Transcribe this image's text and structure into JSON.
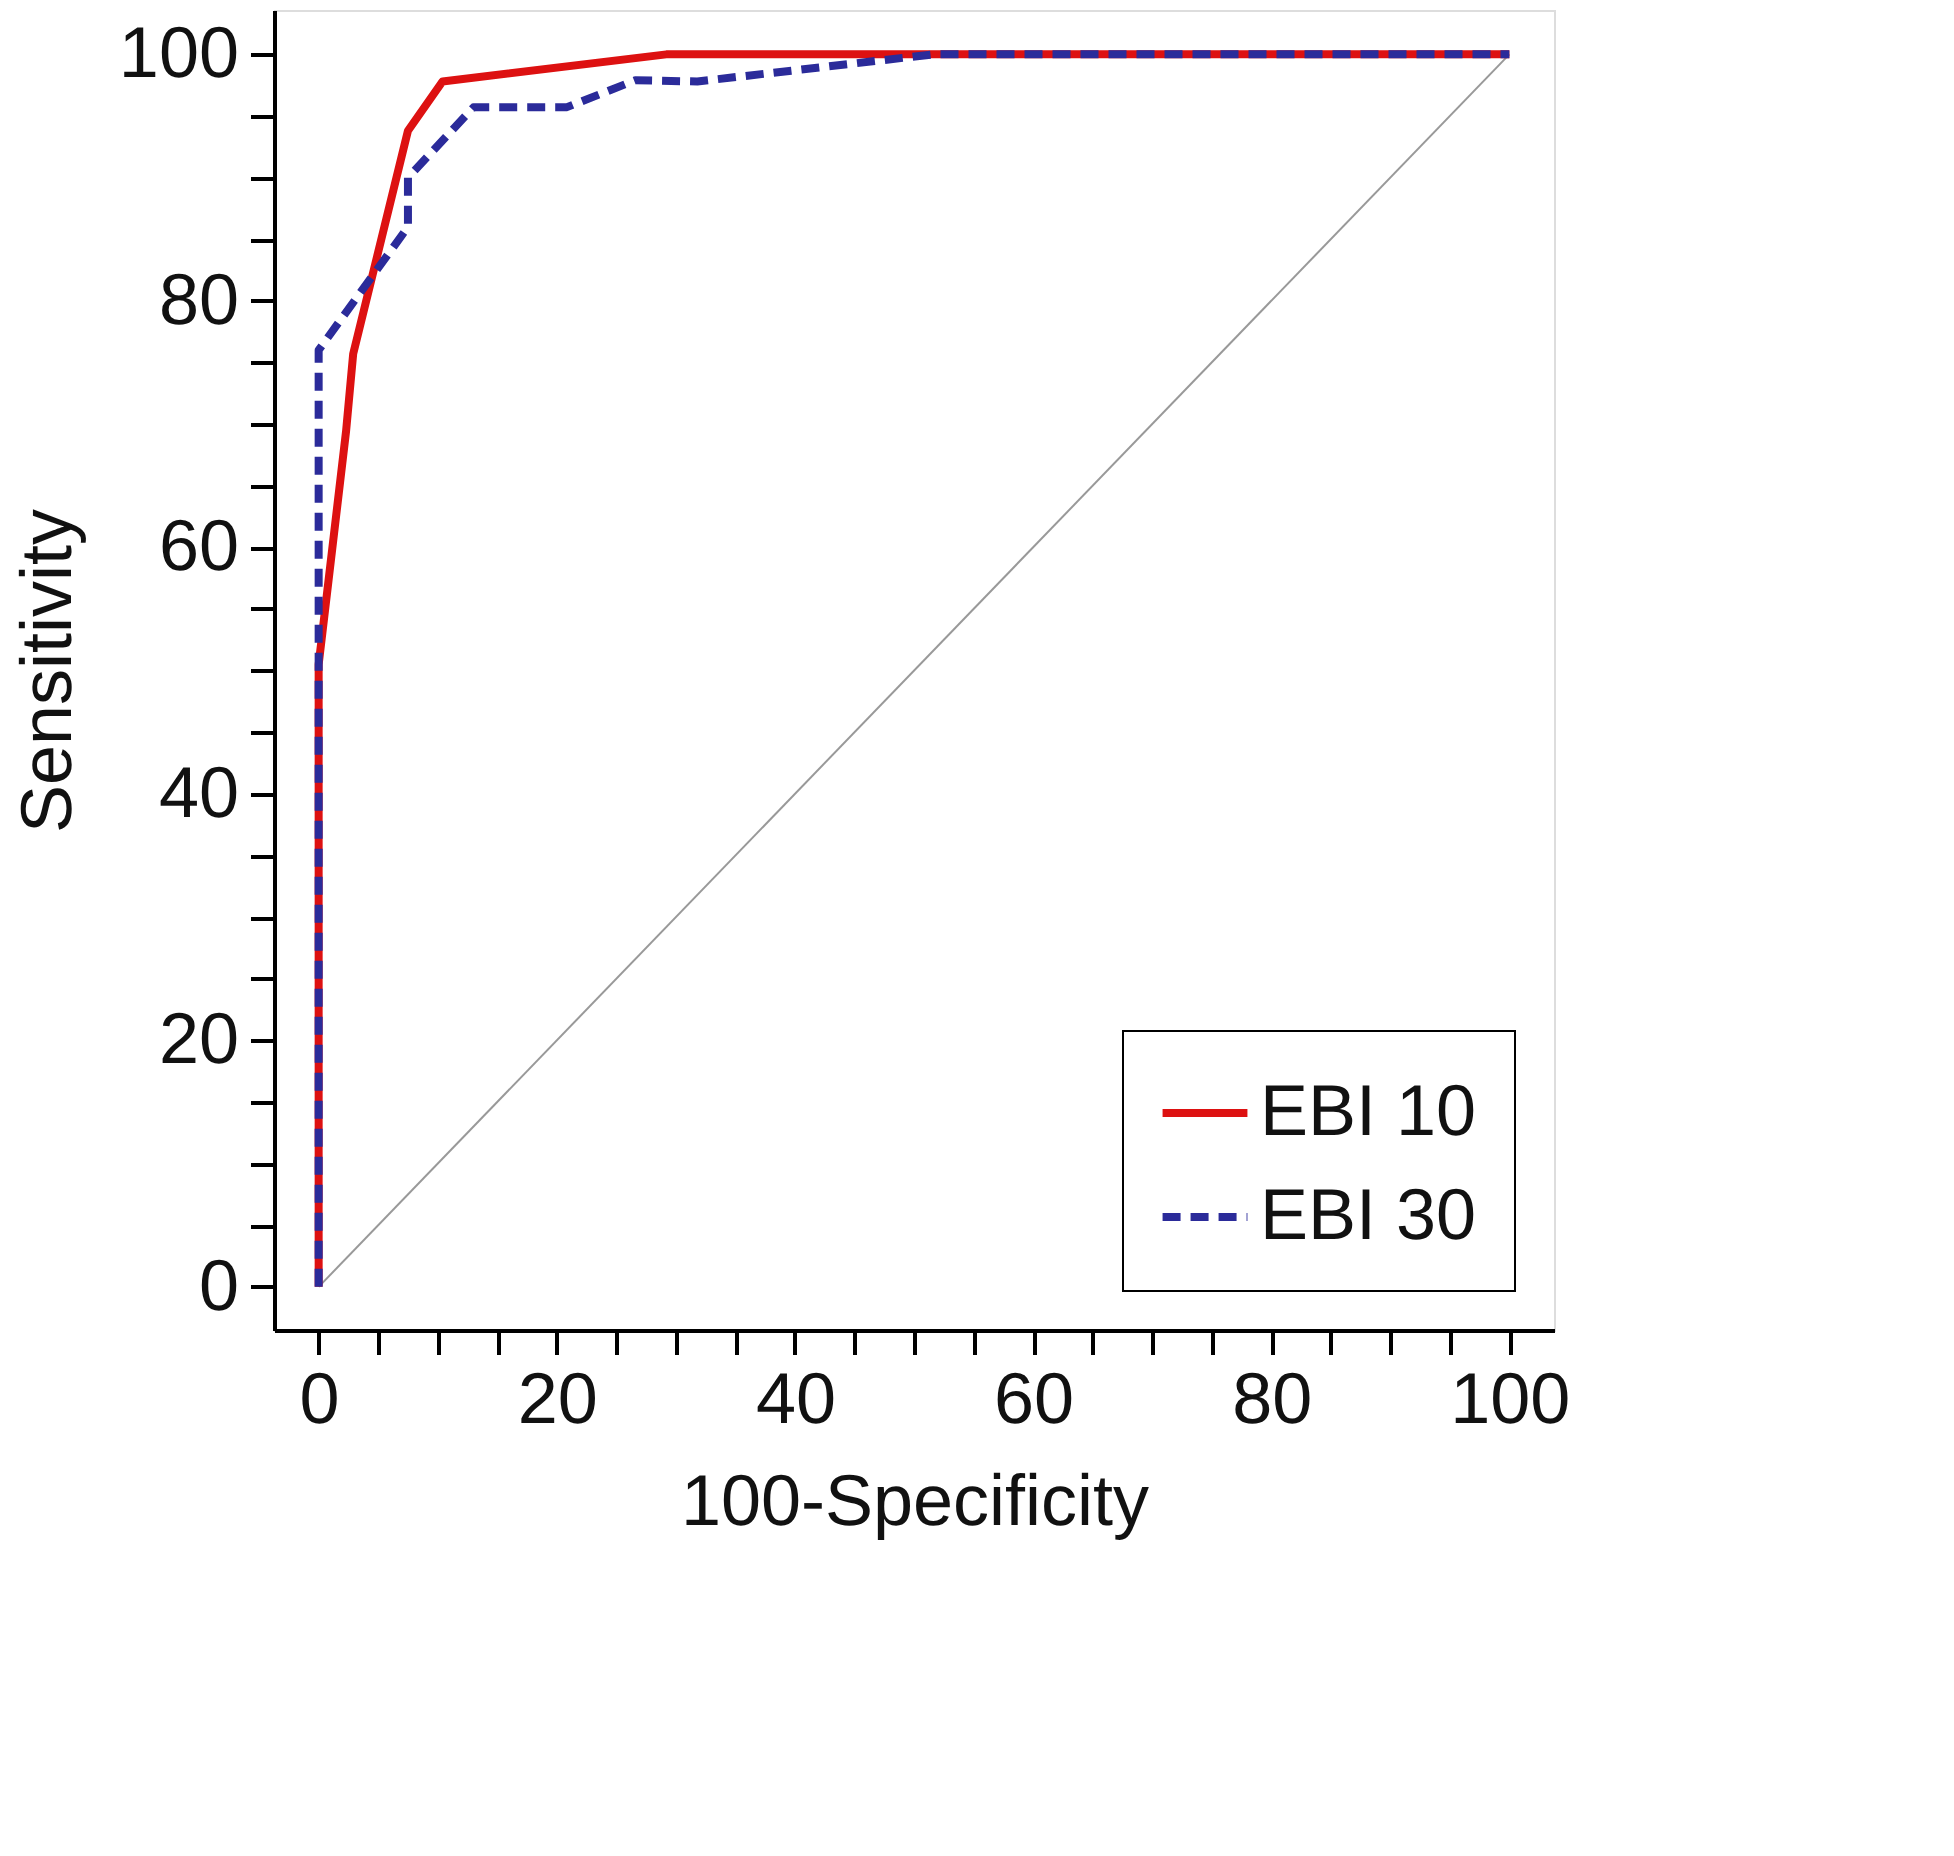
{
  "chart_data": {
    "type": "line",
    "xlabel": "100-Specificity",
    "ylabel": "Sensitivity",
    "xlim": [
      -3.75,
      103.75
    ],
    "ylim": [
      -3.5,
      103.6
    ],
    "xticks": [
      0,
      {
        "value": 5,
        "label": null
      },
      {
        "value": 10,
        "label": null
      },
      {
        "value": 15,
        "label": null
      },
      20,
      {
        "value": 25,
        "label": null
      },
      {
        "value": 30,
        "label": null
      },
      {
        "value": 35,
        "label": null
      },
      40,
      {
        "value": 45,
        "label": null
      },
      {
        "value": 50,
        "label": null
      },
      {
        "value": 55,
        "label": null
      },
      60,
      {
        "value": 65,
        "label": null
      },
      {
        "value": 70,
        "label": null
      },
      {
        "value": 75,
        "label": null
      },
      80,
      {
        "value": 85,
        "label": null
      },
      {
        "value": 90,
        "label": null
      },
      {
        "value": 95,
        "label": null
      },
      100
    ],
    "yticks": [
      0,
      {
        "value": 5,
        "label": null
      },
      {
        "value": 10,
        "label": null
      },
      {
        "value": 15,
        "label": null
      },
      20,
      {
        "value": 25,
        "label": null
      },
      {
        "value": 30,
        "label": null
      },
      {
        "value": 35,
        "label": null
      },
      40,
      {
        "value": 45,
        "label": null
      },
      {
        "value": 50,
        "label": null
      },
      {
        "value": 55,
        "label": null
      },
      60,
      {
        "value": 65,
        "label": null
      },
      {
        "value": 70,
        "label": null
      },
      {
        "value": 75,
        "label": null
      },
      80,
      {
        "value": 85,
        "label": null
      },
      {
        "value": 90,
        "label": null
      },
      {
        "value": 95,
        "label": null
      },
      100
    ],
    "grid": false,
    "legend": "bottom right",
    "marker": "none",
    "series": [
      {
        "name": "EBI 10",
        "color": "#dd1111",
        "line_style": "solid",
        "x": [
          0,
          0,
          2.3,
          2.9,
          7.5,
          10.4,
          29.2,
          100
        ],
        "values": [
          0,
          50.5,
          69.4,
          75.7,
          93.8,
          97.8,
          100,
          100
        ]
      },
      {
        "name": "EBI 30",
        "color": "#2b2b9a",
        "line_style": "dashed",
        "x": [
          0,
          0,
          7.5,
          7.5,
          13,
          20.8,
          26.6,
          31.8,
          51.6,
          100
        ],
        "values": [
          0,
          76,
          86,
          90,
          95.7,
          95.7,
          97.9,
          97.8,
          100,
          100
        ]
      },
      {
        "color": "#999999",
        "line_style": "solid",
        "x": [
          0,
          100
        ],
        "values": [
          0,
          100
        ]
      }
    ]
  }
}
